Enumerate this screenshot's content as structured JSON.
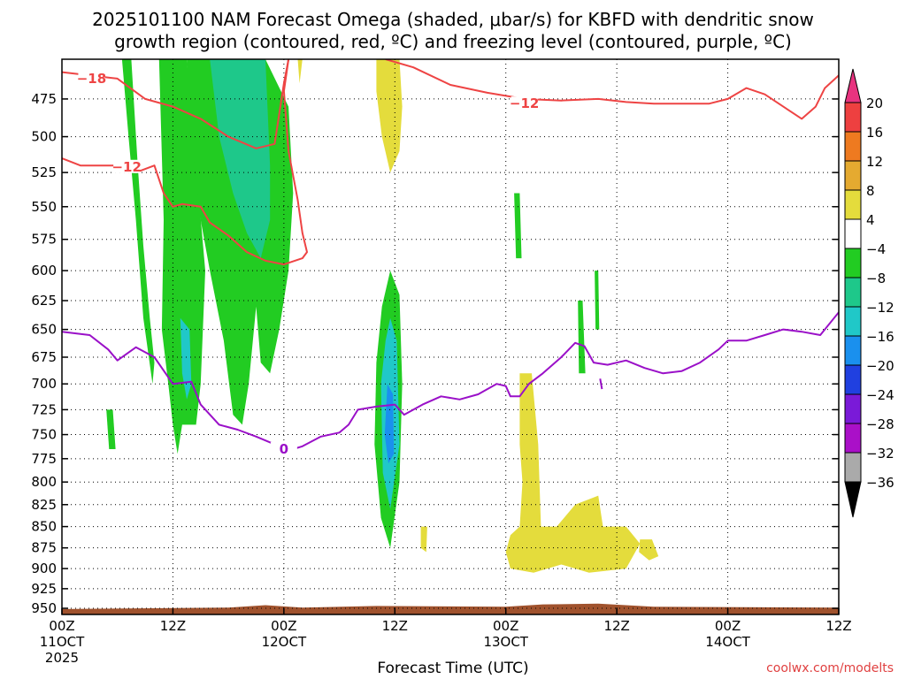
{
  "title": {
    "line1": "2025101100 NAM Forecast Omega (shaded, μbar/s) for KBFD with dendritic snow",
    "line2": "growth region (contoured, red, ºC) and freezing level (contoured, purple, ºC)"
  },
  "credit": "coolwx.com/modelts",
  "chart_data": {
    "type": "heatmap",
    "xlabel": "Forecast Time (UTC)",
    "x_ticks": [
      {
        "h": 0,
        "lines": [
          "00Z",
          "11OCT",
          "2025"
        ]
      },
      {
        "h": 12,
        "lines": [
          "12Z"
        ]
      },
      {
        "h": 24,
        "lines": [
          "00Z",
          "12OCT"
        ]
      },
      {
        "h": 36,
        "lines": [
          "12Z"
        ]
      },
      {
        "h": 48,
        "lines": [
          "00Z",
          "13OCT"
        ]
      },
      {
        "h": 60,
        "lines": [
          "12Z"
        ]
      },
      {
        "h": 72,
        "lines": [
          "00Z",
          "14OCT"
        ]
      },
      {
        "h": 84,
        "lines": [
          "12Z"
        ]
      }
    ],
    "xlim": [
      0,
      84
    ],
    "y_ticks": [
      475,
      500,
      525,
      550,
      575,
      600,
      625,
      650,
      675,
      700,
      725,
      750,
      775,
      800,
      825,
      850,
      875,
      900,
      925,
      950
    ],
    "ylim": [
      450,
      958
    ],
    "y_log": true,
    "grid": true,
    "colorbar": {
      "labels": [
        "20",
        "16",
        "12",
        "8",
        "4",
        "−4",
        "−8",
        "−12",
        "−16",
        "−20",
        "−24",
        "−28",
        "−32",
        "−36"
      ],
      "colors": [
        "#e8337f",
        "#ee4040",
        "#ee7a20",
        "#e5aa30",
        "#e4dc3c",
        "#ffffff",
        "#22cc22",
        "#1ec88a",
        "#20c8c8",
        "#1a90ee",
        "#2040e0",
        "#7a1ad8",
        "#aa10c8",
        "#aaaaaa",
        "#000000"
      ]
    },
    "omega_regions": [
      {
        "color": "#22cc22",
        "points": [
          [
            6.5,
            450
          ],
          [
            7.5,
            450
          ],
          [
            8.2,
            520
          ],
          [
            8.8,
            580
          ],
          [
            9.5,
            640
          ],
          [
            10,
            680
          ],
          [
            9.8,
            700
          ],
          [
            8.8,
            640
          ],
          [
            8,
            560
          ],
          [
            7.2,
            500
          ]
        ]
      },
      {
        "color": "#22cc22",
        "points": [
          [
            10.5,
            450
          ],
          [
            13.5,
            450
          ],
          [
            14.5,
            520
          ],
          [
            15.5,
            600
          ],
          [
            15,
            700
          ],
          [
            14.5,
            740
          ],
          [
            13,
            740
          ],
          [
            12.5,
            770
          ],
          [
            12,
            740
          ],
          [
            11.5,
            700
          ],
          [
            10.8,
            650
          ],
          [
            11,
            560
          ]
        ]
      },
      {
        "color": "#22cc22",
        "points": [
          [
            13.5,
            450
          ],
          [
            22,
            450
          ],
          [
            24.5,
            480
          ],
          [
            25,
            540
          ],
          [
            24.5,
            600
          ],
          [
            23.5,
            650
          ],
          [
            22.5,
            690
          ],
          [
            21.5,
            680
          ],
          [
            21,
            630
          ],
          [
            20.2,
            700
          ],
          [
            19.5,
            740
          ],
          [
            18.5,
            730
          ],
          [
            17.5,
            660
          ],
          [
            16,
            600
          ],
          [
            15,
            560
          ],
          [
            14,
            500
          ]
        ]
      },
      {
        "color": "#1ec88a",
        "points": [
          [
            16,
            450
          ],
          [
            22,
            450
          ],
          [
            22.5,
            520
          ],
          [
            22.5,
            560
          ],
          [
            21.5,
            590
          ],
          [
            20,
            570
          ],
          [
            18.5,
            540
          ],
          [
            17,
            500
          ]
        ]
      },
      {
        "color": "#20c8c8",
        "points": [
          [
            12.8,
            640
          ],
          [
            13.8,
            650
          ],
          [
            14,
            700
          ],
          [
            13.5,
            715
          ],
          [
            13,
            690
          ]
        ]
      },
      {
        "color": "#22cc22",
        "points": [
          [
            4.8,
            725
          ],
          [
            5.5,
            725
          ],
          [
            5.8,
            765
          ],
          [
            5.1,
            765
          ]
        ]
      },
      {
        "color": "#e4dc3c",
        "points": [
          [
            25.5,
            450
          ],
          [
            26,
            450
          ],
          [
            25.7,
            465
          ]
        ]
      },
      {
        "color": "#e4dc3c",
        "points": [
          [
            34,
            450
          ],
          [
            36.5,
            450
          ],
          [
            36.8,
            480
          ],
          [
            36.5,
            510
          ],
          [
            35.5,
            525
          ],
          [
            34.6,
            500
          ],
          [
            34,
            470
          ]
        ]
      },
      {
        "color": "#22cc22",
        "points": [
          [
            35.5,
            600
          ],
          [
            36.5,
            620
          ],
          [
            36.8,
            700
          ],
          [
            36.5,
            800
          ],
          [
            35.5,
            875
          ],
          [
            34.5,
            840
          ],
          [
            33.8,
            760
          ],
          [
            34,
            680
          ],
          [
            34.6,
            630
          ]
        ]
      },
      {
        "color": "#20c8c8",
        "points": [
          [
            35.5,
            640
          ],
          [
            36.2,
            660
          ],
          [
            36.5,
            760
          ],
          [
            35.5,
            830
          ],
          [
            34.7,
            790
          ],
          [
            34.5,
            700
          ],
          [
            35,
            660
          ]
        ]
      },
      {
        "color": "#1a90ee",
        "points": [
          [
            35.2,
            700
          ],
          [
            35.8,
            710
          ],
          [
            35.9,
            770
          ],
          [
            35.3,
            780
          ],
          [
            34.9,
            750
          ]
        ]
      },
      {
        "color": "#e4dc3c",
        "points": [
          [
            38.8,
            850
          ],
          [
            39.5,
            850
          ],
          [
            39.4,
            880
          ],
          [
            38.8,
            875
          ]
        ]
      },
      {
        "color": "#22cc22",
        "points": [
          [
            48.9,
            540
          ],
          [
            49.5,
            540
          ],
          [
            49.7,
            590
          ],
          [
            49.1,
            590
          ]
        ]
      },
      {
        "color": "#e4dc3c",
        "points": [
          [
            49.5,
            690
          ],
          [
            50.8,
            690
          ],
          [
            51.5,
            760
          ],
          [
            51.8,
            850
          ],
          [
            53.5,
            850
          ],
          [
            55.5,
            825
          ],
          [
            58,
            815
          ],
          [
            58.5,
            850
          ],
          [
            61,
            850
          ],
          [
            62.5,
            870
          ],
          [
            61,
            900
          ],
          [
            57,
            905
          ],
          [
            54,
            895
          ],
          [
            51,
            905
          ],
          [
            48.5,
            900
          ],
          [
            48,
            880
          ],
          [
            48.5,
            860
          ],
          [
            49.5,
            850
          ],
          [
            49.8,
            800
          ],
          [
            49.5,
            760
          ]
        ]
      },
      {
        "color": "#e4dc3c",
        "points": [
          [
            62.5,
            865
          ],
          [
            63.8,
            865
          ],
          [
            64.5,
            885
          ],
          [
            63.5,
            890
          ],
          [
            62.4,
            880
          ]
        ]
      },
      {
        "color": "#22cc22",
        "points": [
          [
            55.8,
            625
          ],
          [
            56.3,
            625
          ],
          [
            56.6,
            690
          ],
          [
            55.9,
            690
          ]
        ]
      },
      {
        "color": "#22cc22",
        "points": [
          [
            57.6,
            600
          ],
          [
            58,
            600
          ],
          [
            58.1,
            650
          ],
          [
            57.7,
            650
          ]
        ]
      }
    ],
    "red_contours": [
      {
        "label": "−18",
        "label_at": [
          3.2,
          462
        ],
        "points": [
          [
            0,
            458
          ],
          [
            3,
            460
          ],
          [
            6,
            462
          ],
          [
            9,
            475
          ],
          [
            12,
            480
          ],
          [
            15,
            488
          ],
          [
            18,
            500
          ],
          [
            21,
            508
          ],
          [
            23,
            505
          ],
          [
            24,
            465
          ],
          [
            24.5,
            450
          ]
        ]
      },
      {
        "label": "−12",
        "label_at": [
          7,
          521
        ],
        "points": [
          [
            0,
            515
          ],
          [
            2,
            520
          ],
          [
            4,
            520
          ],
          [
            6,
            520
          ],
          [
            8,
            525
          ],
          [
            10,
            520
          ],
          [
            11,
            540
          ],
          [
            12,
            550
          ],
          [
            13,
            548
          ],
          [
            15,
            550
          ],
          [
            16,
            562
          ],
          [
            18,
            572
          ],
          [
            20,
            585
          ],
          [
            22,
            592
          ],
          [
            24,
            595
          ],
          [
            26,
            590
          ],
          [
            26.5,
            585
          ],
          [
            26,
            570
          ],
          [
            25.5,
            545
          ],
          [
            24.5,
            510
          ],
          [
            24,
            470
          ],
          [
            24.5,
            450
          ]
        ]
      },
      {
        "label": "−12",
        "label_at": [
          50,
          478
        ],
        "points": [
          [
            35,
            450
          ],
          [
            38,
            455
          ],
          [
            42,
            466
          ],
          [
            46,
            471
          ],
          [
            50,
            475
          ],
          [
            54,
            476
          ],
          [
            58,
            475
          ],
          [
            61,
            477
          ],
          [
            64,
            478
          ],
          [
            67,
            478
          ],
          [
            70,
            478
          ],
          [
            72,
            475
          ],
          [
            74,
            468
          ],
          [
            76,
            472
          ],
          [
            78,
            480
          ],
          [
            80,
            488
          ],
          [
            81.5,
            480
          ],
          [
            82.5,
            468
          ],
          [
            84,
            460
          ]
        ]
      }
    ],
    "purple_contours": [
      {
        "label": "0",
        "label_at": [
          24,
          765
        ],
        "points": [
          [
            0,
            652
          ],
          [
            3,
            655
          ],
          [
            5,
            668
          ],
          [
            6,
            678
          ],
          [
            8,
            666
          ],
          [
            10,
            675
          ],
          [
            12,
            700
          ],
          [
            14,
            698
          ],
          [
            15,
            720
          ],
          [
            17,
            740
          ],
          [
            19,
            745
          ],
          [
            21,
            752
          ],
          [
            23,
            760
          ],
          [
            25,
            765
          ],
          [
            26,
            762
          ],
          [
            28,
            752
          ],
          [
            30,
            748
          ],
          [
            31,
            740
          ],
          [
            32,
            725
          ],
          [
            34,
            722
          ],
          [
            36,
            720
          ],
          [
            37,
            730
          ],
          [
            39,
            720
          ],
          [
            41,
            712
          ],
          [
            43,
            715
          ],
          [
            45,
            710
          ],
          [
            47,
            700
          ],
          [
            48,
            702
          ],
          [
            48.5,
            712
          ],
          [
            49.5,
            712
          ],
          [
            50.5,
            700
          ],
          [
            52,
            690
          ],
          [
            54,
            675
          ],
          [
            55.5,
            662
          ],
          [
            56.5,
            665
          ],
          [
            57.5,
            680
          ],
          [
            59,
            682
          ],
          [
            61,
            678
          ],
          [
            63,
            685
          ],
          [
            65,
            690
          ],
          [
            67,
            688
          ],
          [
            69,
            680
          ],
          [
            71,
            668
          ],
          [
            72,
            660
          ],
          [
            74,
            660
          ],
          [
            76,
            655
          ],
          [
            78,
            650
          ],
          [
            80,
            652
          ],
          [
            82,
            655
          ],
          [
            84,
            635
          ]
        ]
      },
      {
        "label": "",
        "label_at": null,
        "points": [
          [
            58.2,
            695
          ],
          [
            58.4,
            705
          ]
        ]
      }
    ],
    "terrain": {
      "color": "#a0522d",
      "points": [
        [
          0,
          958
        ],
        [
          0,
          951
        ],
        [
          18,
          949
        ],
        [
          22,
          946
        ],
        [
          26,
          949
        ],
        [
          34,
          947
        ],
        [
          48,
          948
        ],
        [
          52,
          945
        ],
        [
          58,
          944
        ],
        [
          64,
          948
        ],
        [
          84,
          949
        ],
        [
          84,
          958
        ]
      ]
    }
  }
}
